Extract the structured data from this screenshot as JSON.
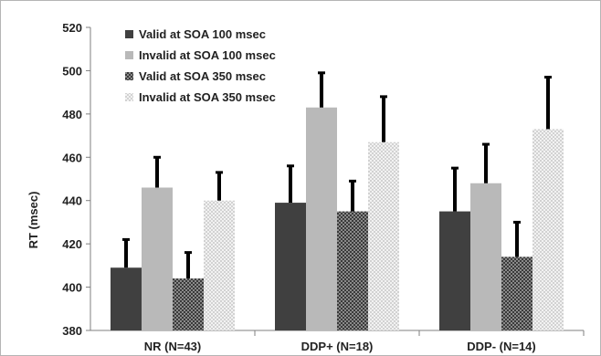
{
  "chart_data": {
    "type": "bar",
    "title": "",
    "xlabel": "",
    "ylabel": "RT (msec)",
    "ylim": [
      380,
      520
    ],
    "yticks": [
      380,
      400,
      420,
      440,
      460,
      480,
      500,
      520
    ],
    "grid": false,
    "legend_position": "top-left",
    "categories": [
      "NR (N=43)",
      "DDP+ (N=18)",
      "DDP- (N=14)"
    ],
    "series": [
      {
        "name": "Valid at SOA 100 msec",
        "color": "#404040",
        "pattern": "solid",
        "values": [
          409,
          439,
          435
        ],
        "error": [
          13,
          17,
          20
        ]
      },
      {
        "name": "Invalid at SOA 100 msec",
        "color": "#b9b9b9",
        "pattern": "solid",
        "values": [
          446,
          483,
          448
        ],
        "error": [
          14,
          16,
          18
        ]
      },
      {
        "name": "Valid at SOA 350 msec",
        "color": "#555555",
        "pattern": "checker-dark",
        "values": [
          404,
          435,
          414
        ],
        "error": [
          12,
          14,
          16
        ]
      },
      {
        "name": "Invalid at SOA 350 msec",
        "color": "#e2e2e2",
        "pattern": "checker-light",
        "values": [
          440,
          467,
          473
        ],
        "error": [
          13,
          21,
          24
        ]
      }
    ]
  }
}
